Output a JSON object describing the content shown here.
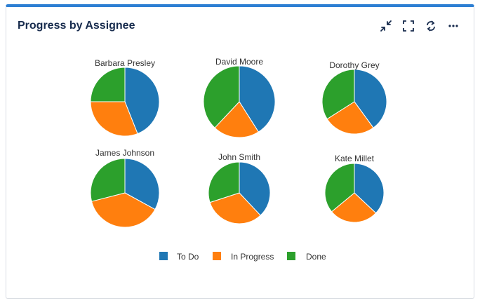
{
  "header": {
    "title": "Progress by Assignee",
    "toolbar": [
      {
        "name": "collapse-icon"
      },
      {
        "name": "fullscreen-icon"
      },
      {
        "name": "refresh-icon"
      },
      {
        "name": "more-icon"
      }
    ]
  },
  "colors": {
    "accent": "#2d7fd3",
    "todo": "#1f77b4",
    "in_progress": "#ff7f0e",
    "done": "#2ca02c"
  },
  "chart_data": {
    "type": "pie",
    "title": "Progress by Assignee",
    "legend": [
      "To Do",
      "In Progress",
      "Done"
    ],
    "legend_position": "bottom-center",
    "pies": [
      {
        "name": "Barbara Presley",
        "values": [
          44,
          31,
          25
        ]
      },
      {
        "name": "David Moore",
        "values": [
          41,
          21,
          38
        ]
      },
      {
        "name": "Dorothy Grey",
        "values": [
          40,
          26,
          34
        ]
      },
      {
        "name": "James Johnson",
        "values": [
          33,
          38,
          29
        ]
      },
      {
        "name": "John Smith",
        "values": [
          38,
          32,
          30
        ]
      },
      {
        "name": "Kate Millet",
        "values": [
          37,
          27,
          36
        ]
      }
    ]
  }
}
